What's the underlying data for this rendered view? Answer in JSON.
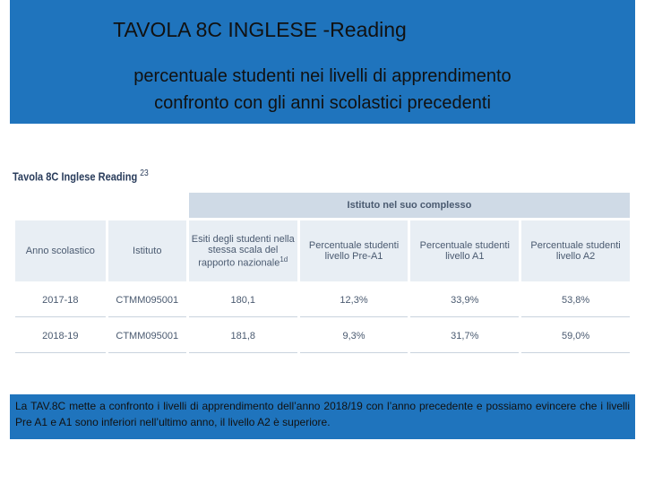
{
  "header": {
    "title": "TAVOLA 8C  INGLESE -Reading",
    "subtitle_lines": [
      "percentuale studenti nei livelli di apprendimento",
      "confronto con gli anni scolastici precedenti"
    ]
  },
  "table": {
    "caption": "Tavola 8C Inglese Reading",
    "caption_note": "23",
    "group_header": "Istituto nel suo complesso",
    "columns": [
      "Anno scolastico",
      "Istituto",
      "Esiti degli studenti nella stessa scala del rapporto nazionale",
      "Percentuale studenti livello Pre-A1",
      "Percentuale studenti livello A1",
      "Percentuale studenti livello A2"
    ],
    "column_note": "1d",
    "rows": [
      [
        "2017-18",
        "CTMM095001",
        "180,1",
        "12,3%",
        "33,9%",
        "53,8%"
      ],
      [
        "2018-19",
        "CTMM095001",
        "181,8",
        "9,3%",
        "31,7%",
        "59,0%"
      ]
    ]
  },
  "footer": {
    "text": "La TAV.8C mette a confronto i livelli di apprendimento dell’anno 2018/19 con l’anno precedente e possiamo evincere che i livelli Pre A1  e A1 sono inferiori nell’ultimo anno, il livello A2 è superiore."
  }
}
